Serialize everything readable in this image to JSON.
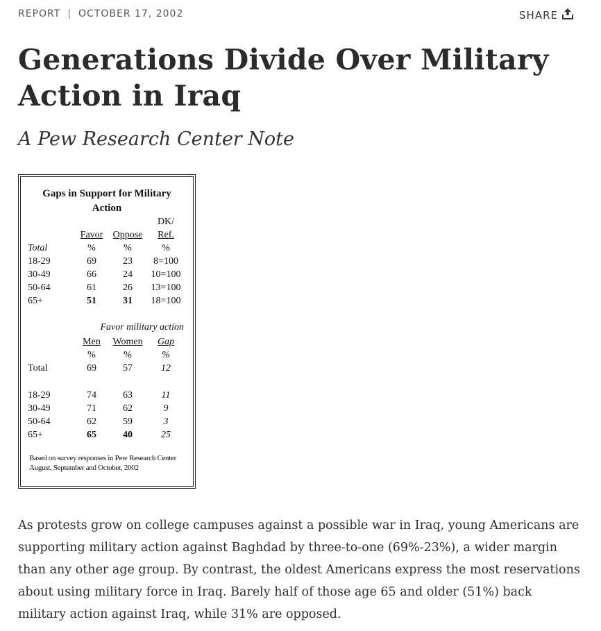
{
  "meta": {
    "type": "REPORT",
    "separator": "|",
    "date": "OCTOBER 17, 2002"
  },
  "share": {
    "label": "SHARE"
  },
  "title": "Generations Divide Over Military Action in Iraq",
  "subtitle": "A Pew Research Center Note",
  "figure": {
    "title_line1": "Gaps in Support for Military",
    "title_line2": "Action",
    "section1": {
      "header_dk_line1": "DK/",
      "headers": [
        "Favor",
        "Oppose",
        "Ref."
      ],
      "total_label": "Total",
      "units": [
        "%",
        "%",
        "%"
      ],
      "rows": [
        {
          "label": "18-29",
          "values": [
            "69",
            "23",
            "8=100"
          ]
        },
        {
          "label": "30-49",
          "values": [
            "66",
            "24",
            "10=100"
          ]
        },
        {
          "label": "50-64",
          "values": [
            "61",
            "26",
            "13=100"
          ]
        },
        {
          "label": "65+",
          "values": [
            "51",
            "31",
            "18=100"
          ]
        }
      ]
    },
    "section2": {
      "title": "Favor military action",
      "headers": [
        "Men",
        "Women",
        "Gap"
      ],
      "units": [
        "%",
        "%",
        "%"
      ],
      "total": {
        "label": "Total",
        "values": [
          "69",
          "57",
          "12"
        ]
      },
      "rows": [
        {
          "label": "18-29",
          "values": [
            "74",
            "63",
            "11"
          ]
        },
        {
          "label": "30-49",
          "values": [
            "71",
            "62",
            "9"
          ]
        },
        {
          "label": "50-64",
          "values": [
            "62",
            "59",
            "3"
          ]
        },
        {
          "label": "65+",
          "values": [
            "65",
            "40",
            "25"
          ]
        }
      ]
    },
    "note": "Based on survey responses in Pew Research Center August, September and October, 2002"
  },
  "body": "As protests grow on college campuses against a possible war in Iraq, young Americans are supporting military action against Baghdad by three-to-one (69%-23%), a wider margin than any other age group. By contrast, the oldest Americans express the most reservations about using military force in Iraq. Barely half of those age 65 and older (51%) back military action against Iraq, while 31% are opposed."
}
